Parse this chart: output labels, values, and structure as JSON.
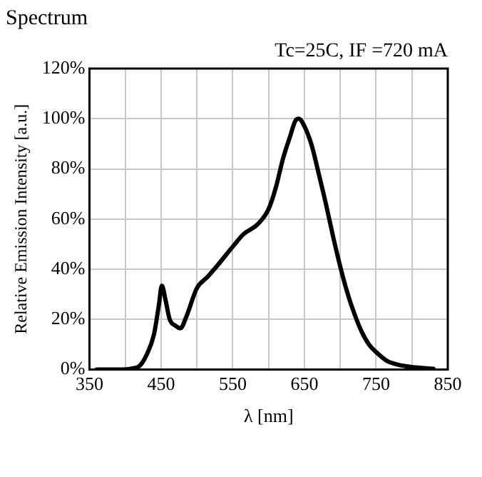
{
  "chart_data": {
    "type": "line",
    "title": "Spectrum",
    "annotations": [
      "Tc=25C, IF =720 mA"
    ],
    "xlabel": "λ [nm]",
    "ylabel": "Relative Emission Intensity [a.u.]",
    "x": [
      360,
      390,
      410,
      420,
      430,
      440,
      447,
      451,
      456,
      462,
      470,
      477,
      485,
      500,
      515,
      530,
      550,
      565,
      585,
      600,
      610,
      620,
      630,
      638,
      642,
      650,
      660,
      670,
      680,
      690,
      700,
      710,
      720,
      730,
      740,
      750,
      765,
      780,
      800,
      830
    ],
    "series": [
      {
        "color": "#000000",
        "values": [
          0,
          0,
          0.5,
          1.5,
          6,
          14,
          26,
          33.5,
          28,
          20,
          17.5,
          16.5,
          21,
          32.5,
          37,
          42,
          49,
          54,
          58,
          64,
          72.5,
          84,
          93,
          99.5,
          100,
          97,
          89.5,
          78,
          66,
          53,
          41,
          30.5,
          22,
          15,
          10,
          7,
          3.5,
          2,
          1,
          0.3
        ]
      }
    ],
    "xlim": [
      350,
      850
    ],
    "xticks": [
      350,
      {
        "value": 400,
        "label": null
      },
      450,
      {
        "value": 500,
        "label": null
      },
      550,
      {
        "value": 600,
        "label": null
      },
      650,
      {
        "value": 700,
        "label": null
      },
      750,
      {
        "value": 800,
        "label": null
      },
      850
    ],
    "ylim": [
      0,
      120
    ],
    "yticks": [
      {
        "value": 0,
        "label": "0%"
      },
      {
        "value": 20,
        "label": "20%"
      },
      {
        "value": 40,
        "label": "40%"
      },
      {
        "value": 60,
        "label": "60%"
      },
      {
        "value": 80,
        "label": "80%"
      },
      {
        "value": 100,
        "label": "100%"
      },
      {
        "value": 120,
        "label": "120%"
      }
    ],
    "grid": true,
    "legend": false,
    "marker": "none",
    "line_style": "solid"
  }
}
